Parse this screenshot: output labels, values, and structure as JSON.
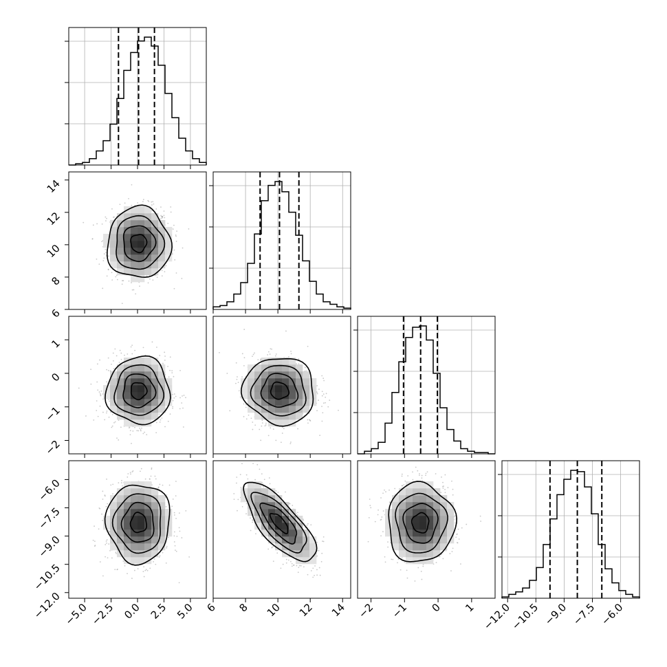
{
  "chart_data": {
    "type": "corner",
    "parameters": [
      {
        "ylim_hist": null,
        "range": [
          -6.5,
          6.5
        ],
        "ticks": [
          -5.0,
          -2.5,
          0.0,
          2.5,
          5.0
        ],
        "tick_labels": [
          "−5.0",
          "−2.5",
          "0.0",
          "2.5",
          "5.0"
        ],
        "quantiles": [
          -1.8,
          0.1,
          1.6
        ]
      },
      {
        "range": [
          6.0,
          14.5
        ],
        "ticks": [
          6,
          8,
          10,
          12,
          14
        ],
        "tick_labels": [
          "6",
          "8",
          "10",
          "12",
          "14"
        ],
        "quantiles": [
          8.9,
          10.1,
          11.3
        ]
      },
      {
        "range": [
          -2.4,
          1.7
        ],
        "ticks": [
          -2,
          -1,
          0,
          1
        ],
        "tick_labels": [
          "−2",
          "−1",
          "0",
          "1"
        ],
        "quantiles": [
          -1.03,
          -0.52,
          -0.02
        ]
      },
      {
        "range": [
          -12.3,
          -5.0
        ],
        "ticks": [
          -12.0,
          -10.5,
          -9.0,
          -7.5,
          -6.0
        ],
        "tick_labels": [
          "−12.0",
          "−10.5",
          "−9.0",
          "−7.5",
          "−6.0"
        ],
        "quantiles": [
          -9.75,
          -8.3,
          -7.0
        ]
      }
    ],
    "histograms": [
      {
        "param": 0,
        "bin_start": -6.5,
        "bin_width": 0.65,
        "counts": [
          0.0,
          0.01,
          0.02,
          0.05,
          0.11,
          0.19,
          0.32,
          0.52,
          0.74,
          0.88,
          0.97,
          1.0,
          0.93,
          0.78,
          0.56,
          0.37,
          0.21,
          0.11,
          0.05,
          0.02
        ]
      },
      {
        "param": 1,
        "bin_start": 6.0,
        "bin_width": 0.425,
        "counts": [
          0.02,
          0.03,
          0.06,
          0.12,
          0.21,
          0.36,
          0.59,
          0.85,
          0.97,
          1.0,
          0.92,
          0.76,
          0.58,
          0.38,
          0.22,
          0.12,
          0.06,
          0.04,
          0.02,
          0.01
        ]
      },
      {
        "param": 2,
        "bin_start": -2.4,
        "bin_width": 0.205,
        "counts": [
          0.0,
          0.02,
          0.04,
          0.09,
          0.24,
          0.48,
          0.72,
          0.91,
          0.99,
          1.0,
          0.89,
          0.63,
          0.36,
          0.19,
          0.1,
          0.04,
          0.02,
          0.01,
          0.01,
          0.0
        ]
      },
      {
        "param": 3,
        "bin_start": -12.3,
        "bin_width": 0.365,
        "counts": [
          0.01,
          0.03,
          0.05,
          0.08,
          0.14,
          0.24,
          0.42,
          0.62,
          0.81,
          0.93,
          1.0,
          0.99,
          0.87,
          0.66,
          0.42,
          0.23,
          0.12,
          0.06,
          0.03,
          0.01
        ]
      }
    ],
    "pairs": [
      {
        "x": 0,
        "y": 1,
        "mean": [
          0.1,
          10.1
        ],
        "sd": [
          1.5,
          1.1
        ],
        "corr": 0.0
      },
      {
        "x": 0,
        "y": 2,
        "mean": [
          0.1,
          -0.52
        ],
        "sd": [
          1.5,
          0.5
        ],
        "corr": 0.0
      },
      {
        "x": 1,
        "y": 2,
        "mean": [
          10.1,
          -0.52
        ],
        "sd": [
          1.1,
          0.5
        ],
        "corr": -0.05
      },
      {
        "x": 0,
        "y": 3,
        "mean": [
          0.1,
          -8.3
        ],
        "sd": [
          1.5,
          1.05
        ],
        "corr": 0.0
      },
      {
        "x": 1,
        "y": 3,
        "mean": [
          10.1,
          -8.3
        ],
        "sd": [
          1.1,
          1.05
        ],
        "corr": -0.75
      },
      {
        "x": 2,
        "y": 3,
        "mean": [
          -0.52,
          -8.3
        ],
        "sd": [
          0.5,
          1.05
        ],
        "corr": 0.0
      }
    ],
    "contour_levels_sigma": [
      0.5,
      1.0,
      1.5,
      2.0
    ],
    "scatter_points_per_panel": 900,
    "grid": true,
    "title": "",
    "xlabel": "",
    "ylabel": ""
  }
}
